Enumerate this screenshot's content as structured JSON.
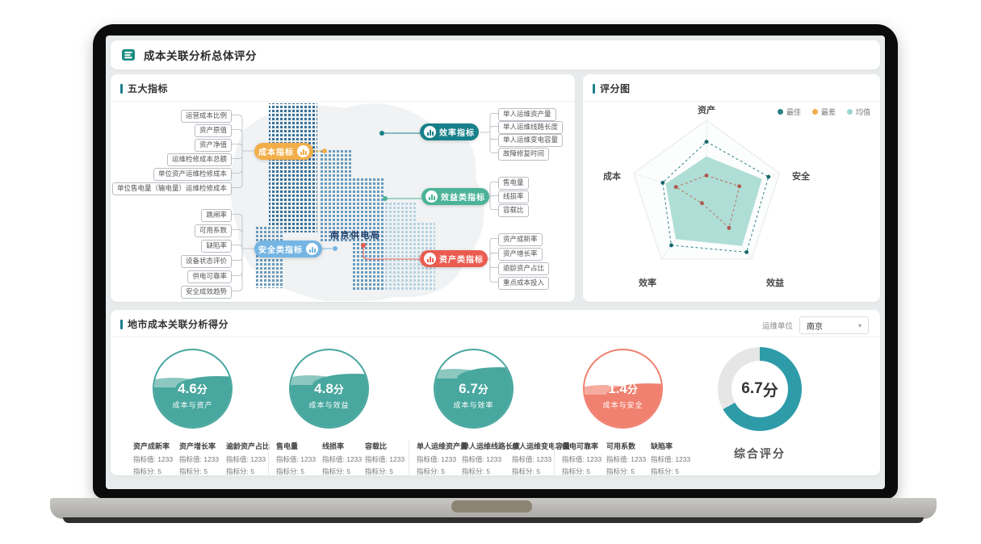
{
  "header": {
    "title": "成本关联分析总体评分"
  },
  "indicators_panel": {
    "title": "五大指标",
    "map_label": "南京供电局",
    "left_groups": {
      "cost": {
        "pill": "成本指标",
        "color": "#F2AE49",
        "children": [
          "运营成本比例",
          "资产原值",
          "资产净值",
          "运维检修成本总额",
          "单位资产运维检修成本",
          "单位售电量（输电量）运维检修成本"
        ]
      },
      "safety": {
        "pill": "安全类指标",
        "color": "#75B5E3",
        "children": [
          "跳闸率",
          "可用系数",
          "缺陷率",
          "设备状态评价",
          "供电可靠率",
          "安全成效趋势"
        ]
      }
    },
    "right_groups": {
      "efficiency": {
        "pill": "效率指标",
        "color": "#17808A",
        "children": [
          "单人运维资产量",
          "单人运维线路长度",
          "单人运维变电容量",
          "故障修复时间"
        ]
      },
      "benefit": {
        "pill": "效益类指标",
        "color": "#4BB398",
        "children": [
          "售电量",
          "线损率",
          "容载比"
        ]
      },
      "asset": {
        "pill": "资产类指标",
        "color": "#EA5C50",
        "children": [
          "资产成新率",
          "资产增长率",
          "逾龄资产占比",
          "重点成本投入"
        ]
      }
    }
  },
  "radar_panel": {
    "title": "评分图",
    "axis_labels": [
      "资产",
      "安全",
      "效益",
      "效率",
      "成本"
    ],
    "legend": [
      {
        "label": "最佳",
        "color": "#2A8186"
      },
      {
        "label": "最差",
        "color": "#F2AE49"
      },
      {
        "label": "均值",
        "color": "#9BD6CE"
      }
    ]
  },
  "city_panel": {
    "title": "地市成本关联分析得分",
    "unit_label": "运维单位",
    "unit_value": "南京",
    "gauges": [
      {
        "score": "4.6",
        "unit": "分",
        "label": "成本与资产"
      },
      {
        "score": "4.8",
        "unit": "分",
        "label": "成本与效益"
      },
      {
        "score": "6.7",
        "unit": "分",
        "label": "成本与效率"
      },
      {
        "score": "1.4",
        "unit": "分",
        "label": "成本与安全"
      }
    ],
    "overall": {
      "score": "6.7",
      "unit": "分",
      "label": "综合评分"
    },
    "metric_groups": [
      {
        "metrics": [
          {
            "name": "资产成新率",
            "value_label": "指标值: 1233",
            "score_label": "指标分: 5"
          },
          {
            "name": "资产增长率",
            "value_label": "指标值: 1233",
            "score_label": "指标分: 5"
          },
          {
            "name": "逾龄资产占比",
            "value_label": "指标值: 1233",
            "score_label": "指标分: 5"
          }
        ]
      },
      {
        "metrics": [
          {
            "name": "售电量",
            "value_label": "指标值: 1233",
            "score_label": "指标分: 5"
          },
          {
            "name": "线损率",
            "value_label": "指标值: 1233",
            "score_label": "指标分: 5"
          },
          {
            "name": "容载比",
            "value_label": "指标值: 1233",
            "score_label": "指标分: 5"
          }
        ]
      },
      {
        "metrics": [
          {
            "name": "单人运维资产量",
            "value_label": "指标值: 1233",
            "score_label": "指标分: 5"
          },
          {
            "name": "单人运维线路长度",
            "value_label": "指标值: 1233",
            "score_label": "指标分: 5"
          },
          {
            "name": "单人运维变电容量",
            "value_label": "指标值: 1233",
            "score_label": "指标分: 5"
          }
        ]
      },
      {
        "metrics": [
          {
            "name": "供电可靠率",
            "value_label": "指标值: 1233",
            "score_label": "指标分: 5"
          },
          {
            "name": "可用系数",
            "value_label": "指标值: 1233",
            "score_label": "指标分: 5"
          },
          {
            "name": "缺陷率",
            "value_label": "指标值: 1233",
            "score_label": "指标分: 5"
          }
        ]
      }
    ]
  },
  "chart_data": [
    {
      "type": "radar",
      "title": "评分图",
      "categories": [
        "资产",
        "安全",
        "效益",
        "效率",
        "成本"
      ],
      "max": 10,
      "grid": "single-outline-pentagon",
      "legend_position": "top-right",
      "series": [
        {
          "name": "最佳",
          "values": [
            7.2,
            8.5,
            8.9,
            7.8,
            6.0
          ],
          "style": "dashed-dots",
          "color": "#2A8186",
          "dot_color": "#17676D"
        },
        {
          "name": "最差",
          "values": [
            2.8,
            4.5,
            5.0,
            1.0,
            4.2
          ],
          "style": "dashed-dots",
          "color": "#C06A5C",
          "dot_color": "#AE584C"
        },
        {
          "name": "均值",
          "values": [
            5.3,
            7.6,
            7.9,
            6.8,
            5.6
          ],
          "style": "filled",
          "color": "#A6DAD2"
        }
      ]
    },
    {
      "type": "gauge",
      "label": "成本与资产",
      "value": 4.6,
      "max": 10,
      "color": "#48A79E",
      "color_light": "#8CC7C0",
      "fill": "52%"
    },
    {
      "type": "gauge",
      "label": "成本与效益",
      "value": 4.8,
      "max": 10,
      "color": "#48A79E",
      "color_light": "#8CC7C0",
      "fill": "55%"
    },
    {
      "type": "gauge",
      "label": "成本与效率",
      "value": 6.7,
      "max": 10,
      "color": "#48A79E",
      "color_light": "#8CC7C0",
      "fill": "63%"
    },
    {
      "type": "gauge",
      "label": "成本与安全",
      "value": 1.4,
      "max": 10,
      "color": "#F0806F",
      "color_light": "#F5AC9F",
      "fill": "42%"
    },
    {
      "type": "donut",
      "label": "综合评分",
      "value": 6.7,
      "max": 10,
      "color": "#2E9BA8",
      "track_color": "#E6E6E6"
    }
  ]
}
